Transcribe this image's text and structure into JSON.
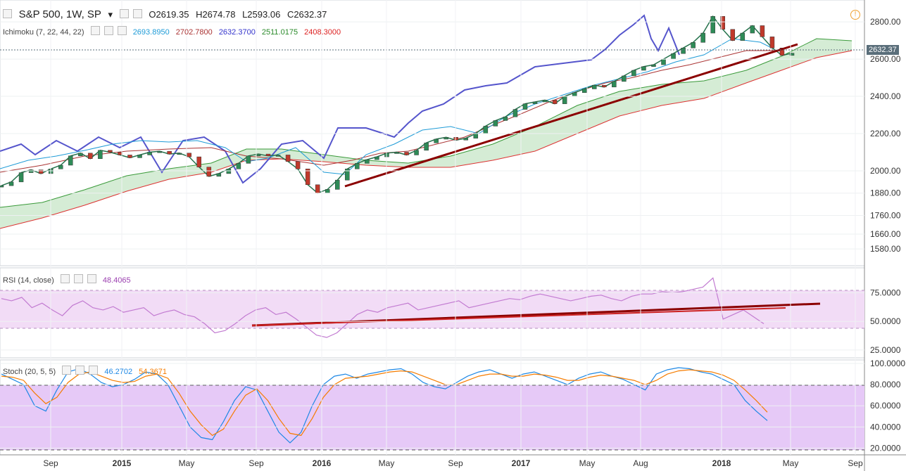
{
  "header": {
    "symbol": "S&P 500, 1W, SP",
    "open": "O2619.35",
    "high": "H2674.78",
    "low": "L2593.06",
    "close": "C2632.37"
  },
  "ichimoku": {
    "label": "Ichimoku (7, 22, 44, 22)",
    "values": [
      "2693.8950",
      "2702.7800",
      "2632.3700",
      "2511.0175",
      "2408.3000"
    ],
    "colors": [
      "#1e9bd7",
      "#a33",
      "#3333cc",
      "#2a8a2a",
      "#d22"
    ]
  },
  "rsi": {
    "label": "RSI (14, close)",
    "value": "48.4065",
    "color": "#9b3fb0"
  },
  "stoch": {
    "label": "Stoch (20, 5, 5)",
    "k": "46.2702",
    "d": "54.3671",
    "k_color": "#1e88e5",
    "d_color": "#f57c00"
  },
  "price_badge": "2632.37",
  "chart_data": [
    {
      "type": "line",
      "panel": "price",
      "ylim": [
        1520,
        2880
      ],
      "y_ticks": [
        "2800.00",
        "2600.00",
        "2400.00",
        "2200.00",
        "2000.00",
        "1880.00",
        "1760.00",
        "1660.00",
        "1580.00"
      ],
      "x_ticks": [
        "Sep",
        "2015",
        "May",
        "Sep",
        "2016",
        "May",
        "Sep",
        "2017",
        "May",
        "Aug",
        "2018",
        "May",
        "Sep"
      ],
      "series": [
        {
          "values": [
            1920,
            1940,
            1990,
            2005,
            1985,
            2010,
            2030,
            2080,
            2095,
            2065,
            2110,
            2100,
            2085,
            2070,
            2085,
            2100,
            2105,
            2090,
            2095,
            2075,
            2020,
            1970,
            1985,
            2010,
            2040,
            2080,
            2090,
            2080,
            2085,
            2050,
            2010,
            1925,
            1880,
            1900,
            1950,
            2010,
            2040,
            2060,
            2075,
            2095,
            2100,
            2085,
            2110,
            2150,
            2170,
            2180,
            2165,
            2175,
            2200,
            2240,
            2270,
            2290,
            2330,
            2360,
            2370,
            2380,
            2360,
            2400,
            2420,
            2440,
            2460,
            2450,
            2480,
            2510,
            2540,
            2560,
            2570,
            2600,
            2630,
            2660,
            2690,
            2740,
            2830,
            2760,
            2700,
            2740,
            2780,
            2720,
            2660,
            2620,
            2632
          ]
        }
      ]
    },
    {
      "type": "line",
      "panel": "rsi",
      "ylim": [
        20,
        95
      ],
      "y_ticks": [
        "75.0000",
        "50.0000",
        "25.0000"
      ],
      "series": [
        {
          "values": [
            70,
            68,
            71,
            62,
            66,
            60,
            55,
            64,
            68,
            62,
            60,
            63,
            58,
            60,
            62,
            55,
            58,
            60,
            56,
            54,
            48,
            40,
            42,
            48,
            55,
            60,
            62,
            56,
            58,
            52,
            45,
            38,
            36,
            40,
            48,
            56,
            60,
            58,
            62,
            64,
            66,
            60,
            62,
            64,
            66,
            68,
            62,
            64,
            66,
            68,
            70,
            69,
            72,
            74,
            72,
            70,
            68,
            70,
            72,
            73,
            70,
            68,
            72,
            74,
            74,
            76,
            75,
            76,
            78,
            80,
            88,
            52,
            56,
            60,
            54,
            48
          ]
        }
      ]
    },
    {
      "type": "line",
      "panel": "stoch",
      "ylim": [
        15,
        102
      ],
      "y_ticks": [
        "100.0000",
        "80.0000",
        "60.0000",
        "40.0000",
        "20.0000"
      ],
      "series": [
        {
          "values": [
            90,
            85,
            80,
            60,
            55,
            75,
            92,
            95,
            90,
            82,
            78,
            80,
            85,
            92,
            90,
            80,
            60,
            40,
            30,
            28,
            45,
            65,
            78,
            75,
            55,
            35,
            25,
            35,
            60,
            80,
            88,
            90,
            86,
            90,
            92,
            94,
            95,
            90,
            82,
            78,
            76,
            82,
            88,
            92,
            94,
            90,
            86,
            90,
            92,
            88,
            84,
            80,
            86,
            90,
            92,
            88,
            85,
            80,
            75,
            90,
            94,
            96,
            95,
            92,
            90,
            85,
            80,
            65,
            55,
            46
          ]
        },
        {
          "values": [
            88,
            87,
            84,
            72,
            62,
            68,
            82,
            90,
            92,
            88,
            84,
            82,
            83,
            88,
            90,
            86,
            72,
            55,
            42,
            32,
            38,
            55,
            70,
            76,
            65,
            48,
            34,
            32,
            48,
            68,
            80,
            86,
            87,
            88,
            90,
            92,
            93,
            92,
            88,
            84,
            80,
            80,
            84,
            88,
            90,
            90,
            88,
            88,
            90,
            89,
            87,
            84,
            84,
            87,
            89,
            88,
            86,
            84,
            80,
            84,
            90,
            93,
            94,
            93,
            92,
            89,
            84,
            75,
            65,
            54
          ]
        }
      ]
    }
  ]
}
